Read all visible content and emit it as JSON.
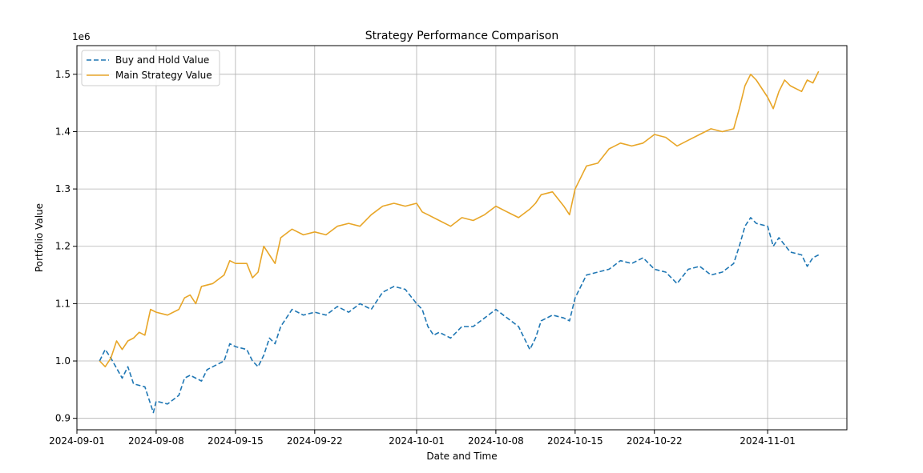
{
  "chart_data": {
    "type": "line",
    "title": "Strategy Performance Comparison",
    "xlabel": "Date and Time",
    "ylabel": "Portfolio Value",
    "y_multiplier_label": "1e6",
    "xlim": [
      "2024-09-01",
      "2024-11-08"
    ],
    "ylim": [
      0.88,
      1.55
    ],
    "x_ticks": [
      {
        "date": "2024-09-01",
        "label": "2024-09-01"
      },
      {
        "date": "2024-09-08",
        "label": "2024-09-08"
      },
      {
        "date": "2024-09-15",
        "label": "2024-09-15"
      },
      {
        "date": "2024-09-22",
        "label": "2024-09-22"
      },
      {
        "date": "2024-10-01",
        "label": "2024-10-01"
      },
      {
        "date": "2024-10-08",
        "label": "2024-10-08"
      },
      {
        "date": "2024-10-15",
        "label": "2024-10-15"
      },
      {
        "date": "2024-10-22",
        "label": "2024-10-22"
      },
      {
        "date": "2024-11-01",
        "label": "2024-11-01"
      }
    ],
    "y_ticks": [
      {
        "value": 0.9,
        "label": "0.9"
      },
      {
        "value": 1.0,
        "label": "1.0"
      },
      {
        "value": 1.1,
        "label": "1.1"
      },
      {
        "value": 1.2,
        "label": "1.2"
      },
      {
        "value": 1.3,
        "label": "1.3"
      },
      {
        "value": 1.4,
        "label": "1.4"
      },
      {
        "value": 1.5,
        "label": "1.5"
      }
    ],
    "grid": true,
    "legend_position": "top-left",
    "series": [
      {
        "name": "Buy and Hold Value",
        "color": "#1f77b4",
        "style": "dashed",
        "points": [
          [
            "2024-09-03",
            1.0
          ],
          [
            "2024-09-03T12",
            1.02
          ],
          [
            "2024-09-04",
            1.005
          ],
          [
            "2024-09-05",
            0.97
          ],
          [
            "2024-09-05T12",
            0.99
          ],
          [
            "2024-09-06",
            0.96
          ],
          [
            "2024-09-07",
            0.955
          ],
          [
            "2024-09-07T18",
            0.91
          ],
          [
            "2024-09-08",
            0.93
          ],
          [
            "2024-09-09",
            0.925
          ],
          [
            "2024-09-10",
            0.94
          ],
          [
            "2024-09-10T12",
            0.97
          ],
          [
            "2024-09-11",
            0.975
          ],
          [
            "2024-09-12",
            0.965
          ],
          [
            "2024-09-12T12",
            0.985
          ],
          [
            "2024-09-13",
            0.99
          ],
          [
            "2024-09-14",
            1.0
          ],
          [
            "2024-09-14T12",
            1.03
          ],
          [
            "2024-09-15",
            1.025
          ],
          [
            "2024-09-16",
            1.02
          ],
          [
            "2024-09-16T12",
            1.0
          ],
          [
            "2024-09-17",
            0.99
          ],
          [
            "2024-09-17T12",
            1.01
          ],
          [
            "2024-09-18",
            1.04
          ],
          [
            "2024-09-18T12",
            1.03
          ],
          [
            "2024-09-19",
            1.06
          ],
          [
            "2024-09-20",
            1.09
          ],
          [
            "2024-09-21",
            1.08
          ],
          [
            "2024-09-22",
            1.085
          ],
          [
            "2024-09-23",
            1.08
          ],
          [
            "2024-09-24",
            1.095
          ],
          [
            "2024-09-25",
            1.085
          ],
          [
            "2024-09-26",
            1.1
          ],
          [
            "2024-09-27",
            1.09
          ],
          [
            "2024-09-28",
            1.12
          ],
          [
            "2024-09-29",
            1.13
          ],
          [
            "2024-09-30",
            1.125
          ],
          [
            "2024-10-01",
            1.1
          ],
          [
            "2024-10-01T12",
            1.09
          ],
          [
            "2024-10-02",
            1.06
          ],
          [
            "2024-10-02T12",
            1.045
          ],
          [
            "2024-10-03",
            1.05
          ],
          [
            "2024-10-04",
            1.04
          ],
          [
            "2024-10-05",
            1.06
          ],
          [
            "2024-10-06",
            1.06
          ],
          [
            "2024-10-07",
            1.075
          ],
          [
            "2024-10-08",
            1.09
          ],
          [
            "2024-10-09",
            1.075
          ],
          [
            "2024-10-10",
            1.06
          ],
          [
            "2024-10-11",
            1.02
          ],
          [
            "2024-10-11T12",
            1.04
          ],
          [
            "2024-10-12",
            1.07
          ],
          [
            "2024-10-13",
            1.08
          ],
          [
            "2024-10-14",
            1.075
          ],
          [
            "2024-10-14T12",
            1.07
          ],
          [
            "2024-10-15",
            1.11
          ],
          [
            "2024-10-15T12",
            1.13
          ],
          [
            "2024-10-16",
            1.15
          ],
          [
            "2024-10-17",
            1.155
          ],
          [
            "2024-10-18",
            1.16
          ],
          [
            "2024-10-19",
            1.175
          ],
          [
            "2024-10-20",
            1.17
          ],
          [
            "2024-10-21",
            1.18
          ],
          [
            "2024-10-22",
            1.16
          ],
          [
            "2024-10-23",
            1.155
          ],
          [
            "2024-10-24",
            1.135
          ],
          [
            "2024-10-25",
            1.16
          ],
          [
            "2024-10-26",
            1.165
          ],
          [
            "2024-10-27",
            1.15
          ],
          [
            "2024-10-28",
            1.155
          ],
          [
            "2024-10-29",
            1.17
          ],
          [
            "2024-10-29T12",
            1.2
          ],
          [
            "2024-10-30",
            1.235
          ],
          [
            "2024-10-30T12",
            1.25
          ],
          [
            "2024-10-31",
            1.24
          ],
          [
            "2024-11-01",
            1.235
          ],
          [
            "2024-11-01T12",
            1.2
          ],
          [
            "2024-11-02",
            1.215
          ],
          [
            "2024-11-03",
            1.19
          ],
          [
            "2024-11-04",
            1.185
          ],
          [
            "2024-11-04T12",
            1.165
          ],
          [
            "2024-11-05",
            1.18
          ],
          [
            "2024-11-05T12",
            1.185
          ]
        ]
      },
      {
        "name": "Main Strategy Value",
        "color": "#e8a628",
        "style": "solid",
        "points": [
          [
            "2024-09-03",
            1.0
          ],
          [
            "2024-09-03T12",
            0.99
          ],
          [
            "2024-09-04",
            1.005
          ],
          [
            "2024-09-04T12",
            1.035
          ],
          [
            "2024-09-05",
            1.02
          ],
          [
            "2024-09-05T12",
            1.035
          ],
          [
            "2024-09-06",
            1.04
          ],
          [
            "2024-09-06T12",
            1.05
          ],
          [
            "2024-09-07",
            1.045
          ],
          [
            "2024-09-07T12",
            1.09
          ],
          [
            "2024-09-08",
            1.085
          ],
          [
            "2024-09-09",
            1.08
          ],
          [
            "2024-09-10",
            1.09
          ],
          [
            "2024-09-10T12",
            1.11
          ],
          [
            "2024-09-11",
            1.115
          ],
          [
            "2024-09-11T12",
            1.1
          ],
          [
            "2024-09-12",
            1.13
          ],
          [
            "2024-09-13",
            1.135
          ],
          [
            "2024-09-14",
            1.15
          ],
          [
            "2024-09-14T12",
            1.175
          ],
          [
            "2024-09-15",
            1.17
          ],
          [
            "2024-09-16",
            1.17
          ],
          [
            "2024-09-16T12",
            1.145
          ],
          [
            "2024-09-17",
            1.155
          ],
          [
            "2024-09-17T12",
            1.2
          ],
          [
            "2024-09-18",
            1.185
          ],
          [
            "2024-09-18T12",
            1.17
          ],
          [
            "2024-09-19",
            1.215
          ],
          [
            "2024-09-20",
            1.23
          ],
          [
            "2024-09-21",
            1.22
          ],
          [
            "2024-09-22",
            1.225
          ],
          [
            "2024-09-23",
            1.22
          ],
          [
            "2024-09-24",
            1.235
          ],
          [
            "2024-09-25",
            1.24
          ],
          [
            "2024-09-26",
            1.235
          ],
          [
            "2024-09-27",
            1.255
          ],
          [
            "2024-09-28",
            1.27
          ],
          [
            "2024-09-29",
            1.275
          ],
          [
            "2024-09-30",
            1.27
          ],
          [
            "2024-10-01",
            1.275
          ],
          [
            "2024-10-01T12",
            1.26
          ],
          [
            "2024-10-02",
            1.255
          ],
          [
            "2024-10-03",
            1.245
          ],
          [
            "2024-10-04",
            1.235
          ],
          [
            "2024-10-05",
            1.25
          ],
          [
            "2024-10-06",
            1.245
          ],
          [
            "2024-10-07",
            1.255
          ],
          [
            "2024-10-08",
            1.27
          ],
          [
            "2024-10-09",
            1.26
          ],
          [
            "2024-10-10",
            1.25
          ],
          [
            "2024-10-11",
            1.265
          ],
          [
            "2024-10-11T12",
            1.275
          ],
          [
            "2024-10-12",
            1.29
          ],
          [
            "2024-10-13",
            1.295
          ],
          [
            "2024-10-14",
            1.27
          ],
          [
            "2024-10-14T12",
            1.255
          ],
          [
            "2024-10-15",
            1.3
          ],
          [
            "2024-10-15T12",
            1.32
          ],
          [
            "2024-10-16",
            1.34
          ],
          [
            "2024-10-17",
            1.345
          ],
          [
            "2024-10-18",
            1.37
          ],
          [
            "2024-10-19",
            1.38
          ],
          [
            "2024-10-20",
            1.375
          ],
          [
            "2024-10-21",
            1.38
          ],
          [
            "2024-10-22",
            1.395
          ],
          [
            "2024-10-23",
            1.39
          ],
          [
            "2024-10-24",
            1.375
          ],
          [
            "2024-10-25",
            1.385
          ],
          [
            "2024-10-26",
            1.395
          ],
          [
            "2024-10-27",
            1.405
          ],
          [
            "2024-10-28",
            1.4
          ],
          [
            "2024-10-29",
            1.405
          ],
          [
            "2024-10-29T12",
            1.44
          ],
          [
            "2024-10-30",
            1.48
          ],
          [
            "2024-10-30T12",
            1.5
          ],
          [
            "2024-10-31",
            1.49
          ],
          [
            "2024-11-01",
            1.46
          ],
          [
            "2024-11-01T12",
            1.44
          ],
          [
            "2024-11-02",
            1.47
          ],
          [
            "2024-11-02T12",
            1.49
          ],
          [
            "2024-11-03",
            1.48
          ],
          [
            "2024-11-04",
            1.47
          ],
          [
            "2024-11-04T12",
            1.49
          ],
          [
            "2024-11-05",
            1.485
          ],
          [
            "2024-11-05T12",
            1.505
          ]
        ]
      }
    ]
  }
}
